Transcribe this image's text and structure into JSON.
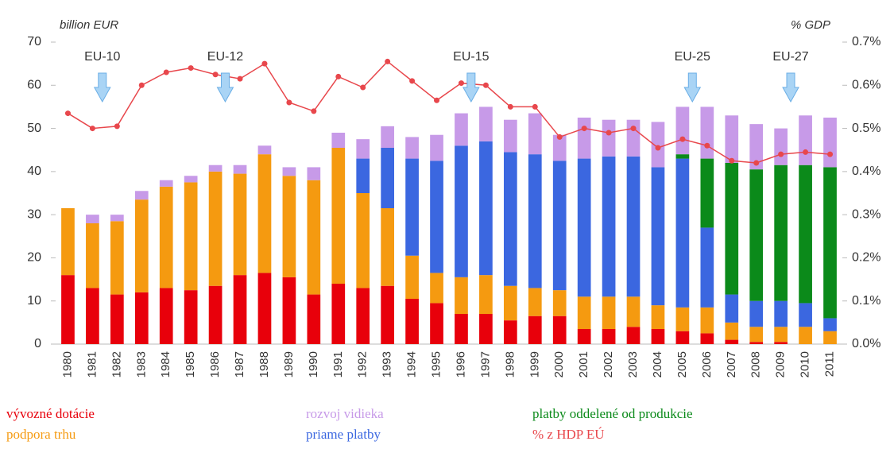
{
  "chart_data": {
    "type": "bar",
    "stacked": true,
    "y_label": "billion EUR",
    "y2_label": "% GDP",
    "categories": [
      "1980",
      "1981",
      "1982",
      "1983",
      "1984",
      "1985",
      "1986",
      "1987",
      "1988",
      "1989",
      "1990",
      "1991",
      "1992",
      "1993",
      "1994",
      "1995",
      "1996",
      "1997",
      "1998",
      "1999",
      "2000",
      "2001",
      "2002",
      "2003",
      "2004",
      "2005",
      "2006",
      "2007",
      "2008",
      "2009",
      "2010",
      "2011"
    ],
    "series": [
      {
        "name": "vývozné dotácie",
        "color": "#e8000b",
        "values": [
          16,
          13,
          11.5,
          12,
          13,
          12.5,
          13.5,
          16,
          16.5,
          15.5,
          11.5,
          14,
          13,
          13.5,
          10.5,
          9.5,
          7,
          7,
          5.5,
          6.5,
          6.5,
          3.5,
          3.5,
          4,
          3.5,
          3,
          2.5,
          1,
          0.5,
          0.5,
          0,
          0
        ]
      },
      {
        "name": "podpora trhu",
        "color": "#f59a10",
        "values": [
          15.5,
          15,
          17,
          21.5,
          23.5,
          25,
          26.5,
          23.5,
          27.5,
          23.5,
          26.5,
          31.5,
          22,
          18,
          10,
          7,
          8.5,
          9,
          8,
          6.5,
          6,
          7.5,
          7.5,
          7,
          5.5,
          5.5,
          6,
          4,
          3.5,
          3.5,
          4,
          3
        ]
      },
      {
        "name": "priame platby",
        "color": "#3b67e0",
        "values": [
          0,
          0,
          0,
          0,
          0,
          0,
          0,
          0,
          0,
          0,
          0,
          0,
          8,
          14,
          22.5,
          26,
          30.5,
          31,
          31,
          31,
          30,
          32,
          32.5,
          32.5,
          32,
          34.5,
          18.5,
          6.5,
          6,
          6,
          5.5,
          3
        ]
      },
      {
        "name": "platby oddelené od produkcie",
        "color": "#0b8a1a",
        "values": [
          0,
          0,
          0,
          0,
          0,
          0,
          0,
          0,
          0,
          0,
          0,
          0,
          0,
          0,
          0,
          0,
          0,
          0,
          0,
          0,
          0,
          0,
          0,
          0,
          0,
          1,
          16,
          30.5,
          30.5,
          31.5,
          32,
          35
        ]
      },
      {
        "name": "rozvoj vidieka",
        "color": "#c79ae8",
        "values": [
          0,
          2,
          1.5,
          2,
          1.5,
          1.5,
          1.5,
          2,
          2,
          2,
          3,
          3.5,
          4.5,
          5,
          5,
          6,
          7.5,
          8,
          7.5,
          9.5,
          6,
          9.5,
          8.5,
          8.5,
          10.5,
          11,
          12,
          11,
          10.5,
          8.5,
          11.5,
          11.5
        ]
      },
      {
        "name": "% z HDP EÚ",
        "color": "#e8474c",
        "type": "line",
        "axis": "y2",
        "values": [
          0.535,
          0.5,
          0.505,
          0.6,
          0.63,
          0.64,
          0.625,
          0.615,
          0.65,
          0.56,
          0.54,
          0.62,
          0.595,
          0.655,
          0.61,
          0.565,
          0.605,
          0.6,
          0.55,
          0.55,
          0.48,
          0.5,
          0.49,
          0.5,
          0.455,
          0.475,
          0.46,
          0.425,
          0.42,
          0.44,
          0.445,
          0.44
        ]
      }
    ],
    "ylim": [
      0,
      70
    ],
    "yticks": [
      0,
      10,
      20,
      30,
      40,
      50,
      60,
      70
    ],
    "y2lim": [
      0,
      0.7
    ],
    "y2ticks": [
      {
        "value": 0,
        "label": "0.0%"
      },
      {
        "value": 0.1,
        "label": "0.1%"
      },
      {
        "value": 0.2,
        "label": "0.2%"
      },
      {
        "value": 0.3,
        "label": "0.3%"
      },
      {
        "value": 0.4,
        "label": "0.4%"
      },
      {
        "value": 0.5,
        "label": "0.5%"
      },
      {
        "value": 0.6,
        "label": "0.6%"
      },
      {
        "value": 0.7,
        "label": "0.7%"
      }
    ],
    "annotations": [
      {
        "text": "EU-10",
        "x": "1981"
      },
      {
        "text": "EU-12",
        "x": "1986"
      },
      {
        "text": "EU-15",
        "x": "1996"
      },
      {
        "text": "EU-25",
        "x": "2005"
      },
      {
        "text": "EU-27",
        "x": "2009"
      }
    ]
  }
}
